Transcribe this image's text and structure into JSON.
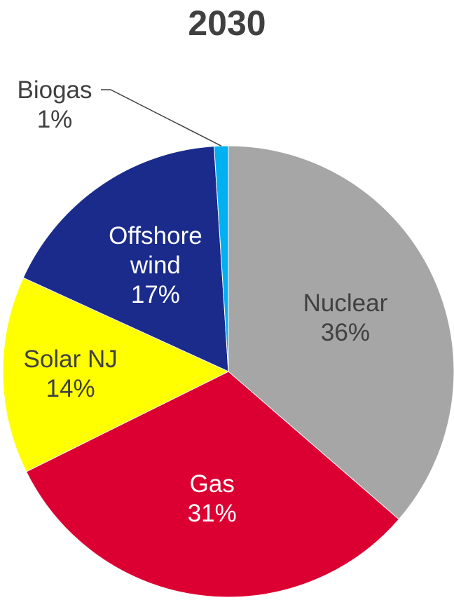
{
  "chart_data": {
    "type": "pie",
    "title": "2030",
    "categories": [
      "Nuclear",
      "Gas",
      "Solar NJ",
      "Offshore wind",
      "Biogas"
    ],
    "values": [
      36,
      31,
      14,
      17,
      1
    ],
    "value_labels": [
      "36%",
      "31%",
      "14%",
      "17%",
      "1%"
    ],
    "colors": [
      "#a6a6a6",
      "#dc0032",
      "#ffff00",
      "#1a2b8c",
      "#00b0f0"
    ]
  }
}
